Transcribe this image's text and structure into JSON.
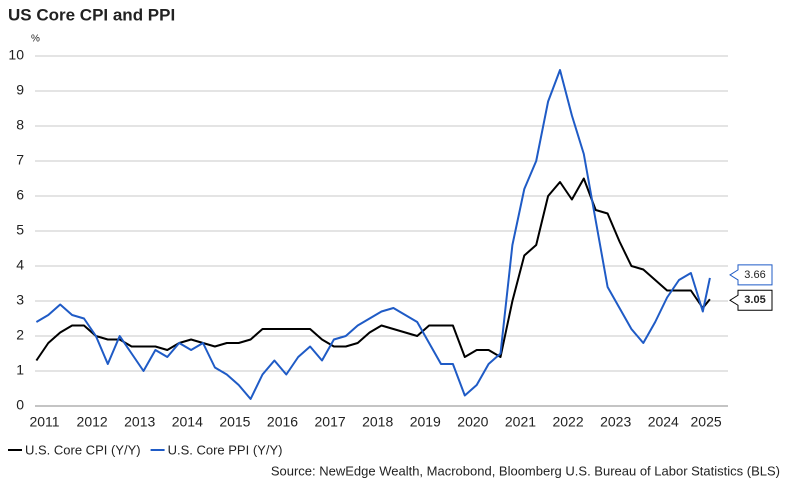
{
  "chart_data": {
    "type": "line",
    "title": "US Core CPI and PPI",
    "y_unit": "%",
    "source": "Source: NewEdge Wealth, Macrobond, Bloomberg U.S. Bureau of Labor Statistics (BLS)",
    "x": [
      2011.33,
      2011.58,
      2011.83,
      2012.08,
      2012.33,
      2012.58,
      2012.83,
      2013.08,
      2013.33,
      2013.58,
      2013.83,
      2014.08,
      2014.33,
      2014.58,
      2014.83,
      2015.08,
      2015.33,
      2015.58,
      2015.83,
      2016.08,
      2016.33,
      2016.58,
      2016.83,
      2017.08,
      2017.33,
      2017.58,
      2017.83,
      2018.08,
      2018.33,
      2018.58,
      2018.83,
      2019.08,
      2019.33,
      2019.58,
      2019.83,
      2020.08,
      2020.33,
      2020.58,
      2020.83,
      2021.08,
      2021.33,
      2021.58,
      2021.83,
      2022.08,
      2022.33,
      2022.58,
      2022.83,
      2023.08,
      2023.33,
      2023.58,
      2023.83,
      2024.08,
      2024.33,
      2024.58,
      2024.83,
      2025.08,
      2025.33,
      2025.48
    ],
    "series": [
      {
        "name": "U.S. Core CPI (Y/Y)",
        "color": "#000000",
        "end_label": "3.05",
        "values": [
          1.3,
          1.8,
          2.1,
          2.3,
          2.3,
          2.0,
          1.9,
          1.9,
          1.7,
          1.7,
          1.7,
          1.6,
          1.8,
          1.9,
          1.8,
          1.7,
          1.8,
          1.8,
          1.9,
          2.2,
          2.2,
          2.2,
          2.2,
          2.2,
          1.9,
          1.7,
          1.7,
          1.8,
          2.1,
          2.3,
          2.2,
          2.1,
          2.0,
          2.3,
          2.3,
          2.3,
          1.4,
          1.6,
          1.6,
          1.4,
          3.0,
          4.3,
          4.6,
          6.0,
          6.4,
          5.9,
          6.5,
          5.6,
          5.5,
          4.7,
          4.0,
          3.9,
          3.6,
          3.3,
          3.3,
          3.3,
          2.8,
          3.05
        ]
      },
      {
        "name": "U.S. Core PPI (Y/Y)",
        "color": "#1f5bc6",
        "end_label": "3.66",
        "values": [
          2.4,
          2.6,
          2.9,
          2.6,
          2.5,
          2.0,
          1.2,
          2.0,
          1.5,
          1.0,
          1.6,
          1.4,
          1.8,
          1.6,
          1.8,
          1.1,
          0.9,
          0.6,
          0.2,
          0.9,
          1.3,
          0.9,
          1.4,
          1.7,
          1.3,
          1.9,
          2.0,
          2.3,
          2.5,
          2.7,
          2.8,
          2.6,
          2.4,
          1.8,
          1.2,
          1.2,
          0.3,
          0.6,
          1.2,
          1.5,
          4.6,
          6.2,
          7.0,
          8.7,
          9.6,
          8.3,
          7.2,
          5.3,
          3.4,
          2.8,
          2.2,
          1.8,
          2.4,
          3.1,
          3.6,
          3.8,
          2.7,
          3.66
        ]
      }
    ],
    "xlim": [
      2011.3,
      2025.86
    ],
    "xticks": [
      {
        "value": 2011.5,
        "label": "2011"
      },
      {
        "value": 2012.5,
        "label": "2012"
      },
      {
        "value": 2013.5,
        "label": "2013"
      },
      {
        "value": 2014.5,
        "label": "2014"
      },
      {
        "value": 2015.5,
        "label": "2015"
      },
      {
        "value": 2016.5,
        "label": "2016"
      },
      {
        "value": 2017.5,
        "label": "2017"
      },
      {
        "value": 2018.5,
        "label": "2018"
      },
      {
        "value": 2019.5,
        "label": "2019"
      },
      {
        "value": 2020.5,
        "label": "2020"
      },
      {
        "value": 2021.5,
        "label": "2021"
      },
      {
        "value": 2022.5,
        "label": "2022"
      },
      {
        "value": 2023.5,
        "label": "2023"
      },
      {
        "value": 2024.5,
        "label": "2024"
      },
      {
        "value": 2025.4,
        "label": "2025"
      }
    ],
    "ylim": [
      0,
      10
    ],
    "yticks": [
      0,
      1,
      2,
      3,
      4,
      5,
      6,
      7,
      8,
      9,
      10
    ],
    "grid": true
  }
}
